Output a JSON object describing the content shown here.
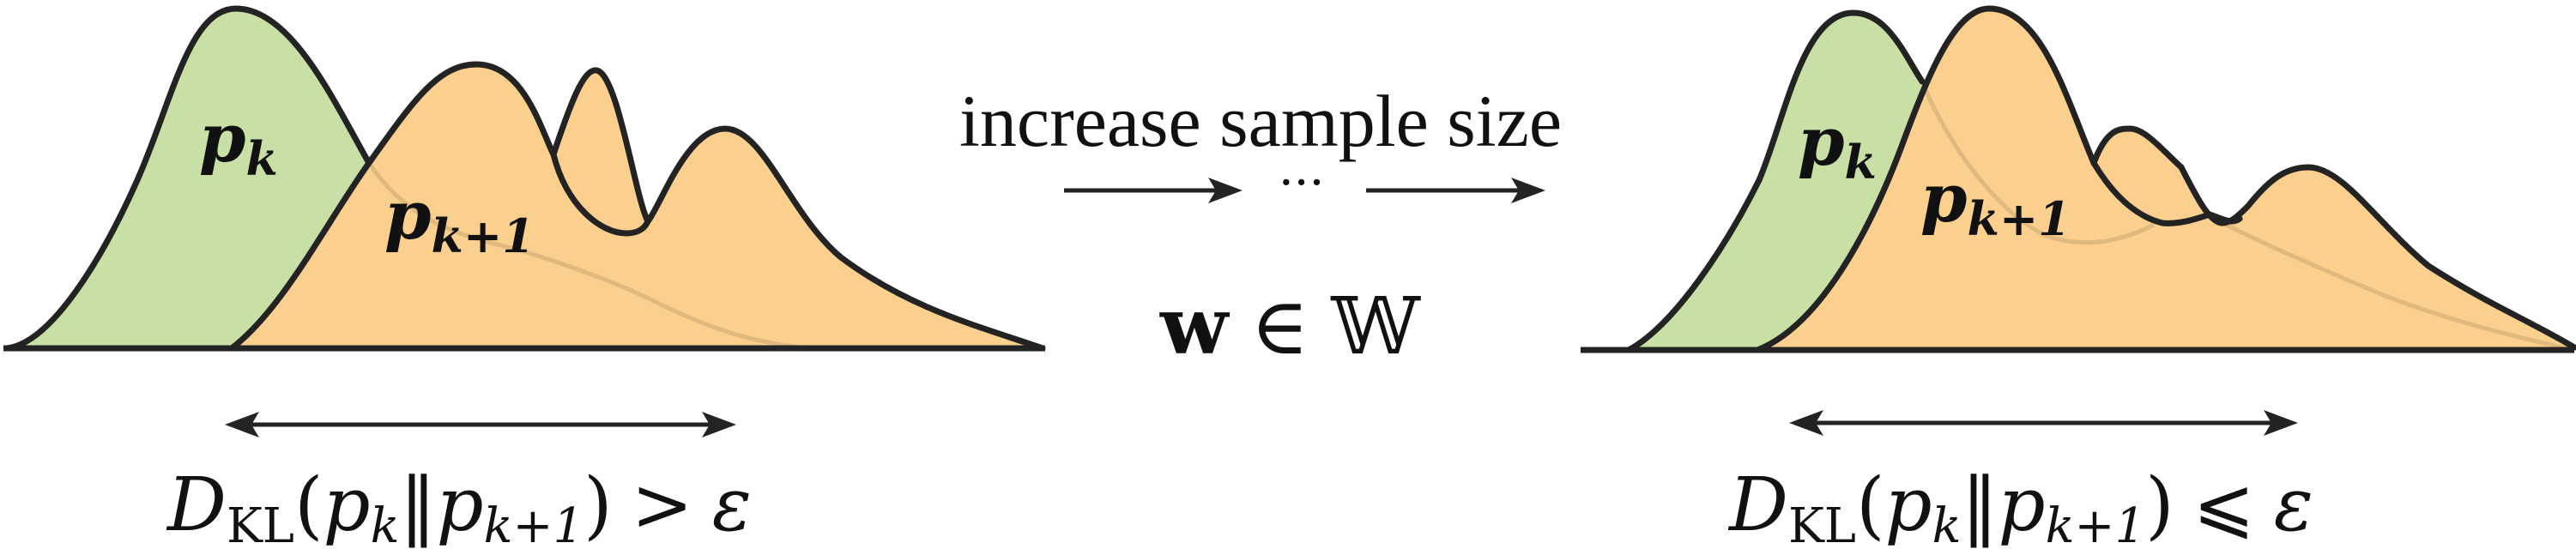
{
  "colors": {
    "green_fill": "#c8e0a5",
    "orange_fill": "#fbcf8e",
    "stroke": "#232323",
    "ghost_stroke": "#d8b37a"
  },
  "left_panel": {
    "label_pk_base": "p",
    "label_pk_sub": "k",
    "label_pk1_base": "p",
    "label_pk1_sub": "k+1",
    "kl": {
      "D": "D",
      "D_sub": "KL",
      "open": "(",
      "p1": "p",
      "p1_sub": "k",
      "bar": "‖",
      "p2": "p",
      "p2_sub": "k+1",
      "close": ")",
      "relation": ">",
      "eps": "ε"
    }
  },
  "middle": {
    "caption": "increase sample size",
    "ellipsis": "···",
    "w_symbol": "w",
    "in_symbol": "∈",
    "space_symbol": "𝕎"
  },
  "right_panel": {
    "label_pk_base": "p",
    "label_pk_sub": "k",
    "label_pk1_base": "p",
    "label_pk1_sub": "k+1",
    "kl": {
      "D": "D",
      "D_sub": "KL",
      "open": "(",
      "p1": "p",
      "p1_sub": "k",
      "bar": "‖",
      "p2": "p",
      "p2_sub": "k+1",
      "close": ")",
      "relation": "⩽",
      "eps": "ε"
    }
  }
}
